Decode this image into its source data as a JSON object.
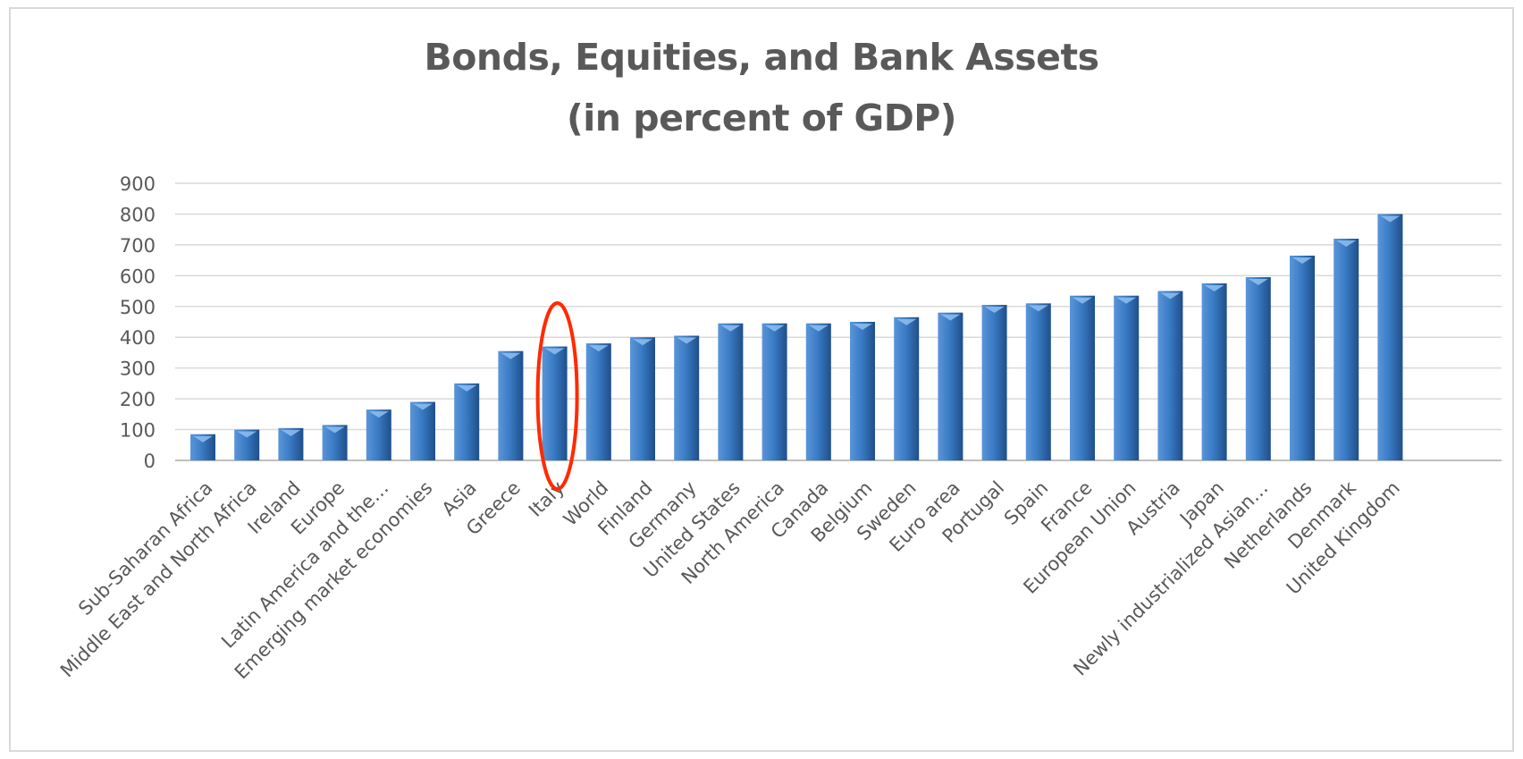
{
  "chart_data": {
    "type": "bar",
    "title": "Bonds, Equities, and Bank Assets",
    "subtitle": "(in percent of GDP)",
    "xlabel": "",
    "ylabel": "",
    "ylim": [
      0,
      900
    ],
    "yticks": [
      0,
      100,
      200,
      300,
      400,
      500,
      600,
      700,
      800,
      900
    ],
    "grid": true,
    "categories": [
      "Sub-Saharan Africa",
      "Middle East and North Africa",
      "Ireland",
      "Europe",
      "Latin America and the…",
      "Emerging market economies",
      "Asia",
      "Greece",
      "Italy",
      "World",
      "Finland",
      "Germany",
      "United States",
      "North America",
      "Canada",
      "Belgium",
      "Sweden",
      "Euro area",
      "Portugal",
      "Spain",
      "France",
      "European Union",
      "Austria",
      "Japan",
      "Newly industrialized Asian…",
      "Netherlands",
      "Denmark",
      "United Kingdom"
    ],
    "values": [
      85,
      100,
      105,
      115,
      165,
      190,
      250,
      355,
      370,
      380,
      400,
      405,
      445,
      445,
      445,
      450,
      465,
      480,
      505,
      510,
      535,
      535,
      550,
      575,
      595,
      665,
      720,
      800
    ],
    "bar_color": "#2e6db4",
    "highlight": {
      "category": "Italy",
      "shape": "ellipse",
      "color": "#ff2a00"
    }
  }
}
